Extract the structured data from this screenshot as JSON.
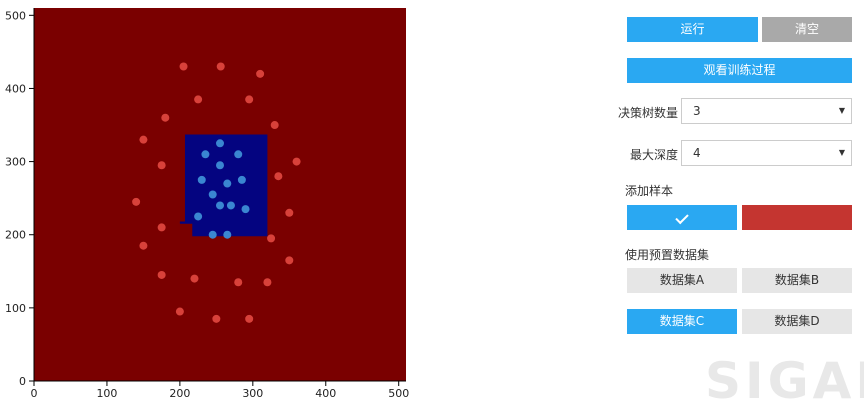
{
  "controls": {
    "run_label": "运行",
    "clear_label": "清空",
    "watch_training_label": "观看训练过程",
    "tree_count_label": "决策树数量",
    "tree_count_value": "3",
    "max_depth_label": "最大深度",
    "max_depth_value": "4",
    "add_sample_label": "添加样本",
    "preset_dataset_label": "使用预置数据集",
    "datasets": [
      "数据集A",
      "数据集B",
      "数据集C",
      "数据集D"
    ],
    "active_dataset": "数据集C"
  },
  "watermark": "SIGAI",
  "colors": {
    "background_region": "#7a0000",
    "inner_region": "#040480",
    "red_point": "#d8413a",
    "blue_point": "#3a86d1",
    "accent": "#2aa8f2"
  },
  "chart_data": {
    "type": "scatter",
    "xlim": [
      0,
      510
    ],
    "ylim": [
      0,
      510
    ],
    "x_ticks": [
      0,
      100,
      200,
      300,
      400,
      500
    ],
    "y_ticks": [
      0,
      100,
      200,
      300,
      400,
      500
    ],
    "inner_region": {
      "polygon": [
        [
          207,
          337
        ],
        [
          320,
          337
        ],
        [
          320,
          198
        ],
        [
          217,
          198
        ],
        [
          217,
          215
        ],
        [
          200,
          215
        ],
        [
          200,
          218
        ],
        [
          207,
          218
        ]
      ]
    },
    "series": [
      {
        "class": "red",
        "points": [
          [
            205,
            430
          ],
          [
            256,
            430
          ],
          [
            310,
            420
          ],
          [
            225,
            385
          ],
          [
            295,
            385
          ],
          [
            180,
            360
          ],
          [
            330,
            350
          ],
          [
            150,
            330
          ],
          [
            175,
            295
          ],
          [
            360,
            300
          ],
          [
            335,
            280
          ],
          [
            140,
            245
          ],
          [
            350,
            230
          ],
          [
            175,
            210
          ],
          [
            325,
            195
          ],
          [
            150,
            185
          ],
          [
            350,
            165
          ],
          [
            175,
            145
          ],
          [
            220,
            140
          ],
          [
            280,
            135
          ],
          [
            320,
            135
          ],
          [
            200,
            95
          ],
          [
            250,
            85
          ],
          [
            295,
            85
          ]
        ]
      },
      {
        "class": "blue",
        "points": [
          [
            255,
            325
          ],
          [
            235,
            310
          ],
          [
            280,
            310
          ],
          [
            255,
            295
          ],
          [
            230,
            275
          ],
          [
            265,
            270
          ],
          [
            285,
            275
          ],
          [
            245,
            255
          ],
          [
            255,
            240
          ],
          [
            270,
            240
          ],
          [
            290,
            235
          ],
          [
            225,
            225
          ],
          [
            245,
            200
          ],
          [
            265,
            200
          ]
        ]
      }
    ]
  }
}
